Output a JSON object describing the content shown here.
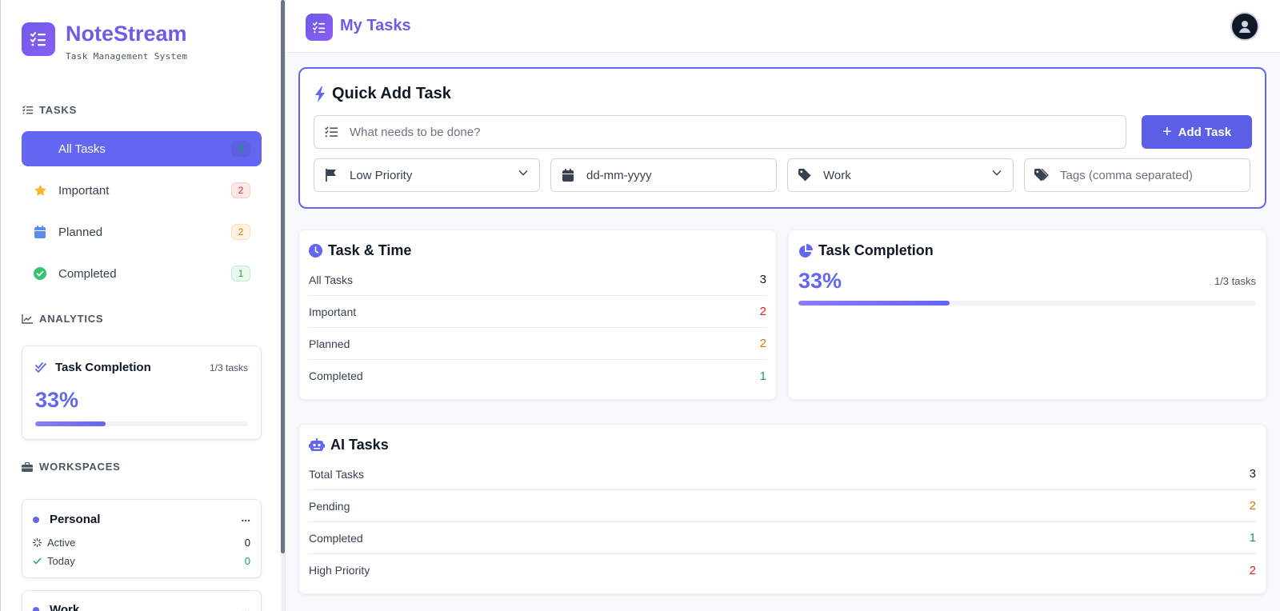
{
  "brand": {
    "title": "NoteStream",
    "subtitle": "Task Management System"
  },
  "sidebar": {
    "tasks_label": "TASKS",
    "items": [
      {
        "label": "All Tasks",
        "count": "3"
      },
      {
        "label": "Important",
        "count": "2"
      },
      {
        "label": "Planned",
        "count": "2"
      },
      {
        "label": "Completed",
        "count": "1"
      }
    ],
    "analytics_label": "ANALYTICS",
    "completion": {
      "title": "Task Completion",
      "meta": "1/3 tasks",
      "percent": "33%",
      "progress": 0.33
    },
    "workspaces_label": "WORKSPACES",
    "workspaces": [
      {
        "name": "Personal",
        "more": "...",
        "active_label": "Active",
        "active_value": "0",
        "today_label": "Today",
        "today_value": "0"
      },
      {
        "name": "Work",
        "more": "..."
      }
    ]
  },
  "header": {
    "title": "My Tasks"
  },
  "quick_add": {
    "title": "Quick Add Task",
    "task_placeholder": "What needs to be done?",
    "add_label": "Add Task",
    "priority_value": "Low Priority",
    "date_placeholder": "dd-mm-yyyy",
    "category_value": "Work",
    "tags_placeholder": "Tags (comma separated)"
  },
  "task_time": {
    "title": "Task & Time",
    "rows": [
      {
        "label": "All Tasks",
        "value": "3"
      },
      {
        "label": "Important",
        "value": "2"
      },
      {
        "label": "Planned",
        "value": "2"
      },
      {
        "label": "Completed",
        "value": "1"
      }
    ]
  },
  "task_completion": {
    "title": "Task Completion",
    "percent": "33%",
    "meta": "1/3 tasks",
    "progress": 0.33
  },
  "ai_tasks": {
    "title": "AI Tasks",
    "rows": [
      {
        "label": "Total Tasks",
        "value": "3"
      },
      {
        "label": "Pending",
        "value": "2"
      },
      {
        "label": "Completed",
        "value": "1"
      },
      {
        "label": "High Priority",
        "value": "2"
      }
    ]
  },
  "colors": {
    "accent": "#6366f1",
    "brand": "#6c5ce7",
    "red": "#dc2626",
    "orange": "#d97706",
    "green": "#16a34a"
  }
}
